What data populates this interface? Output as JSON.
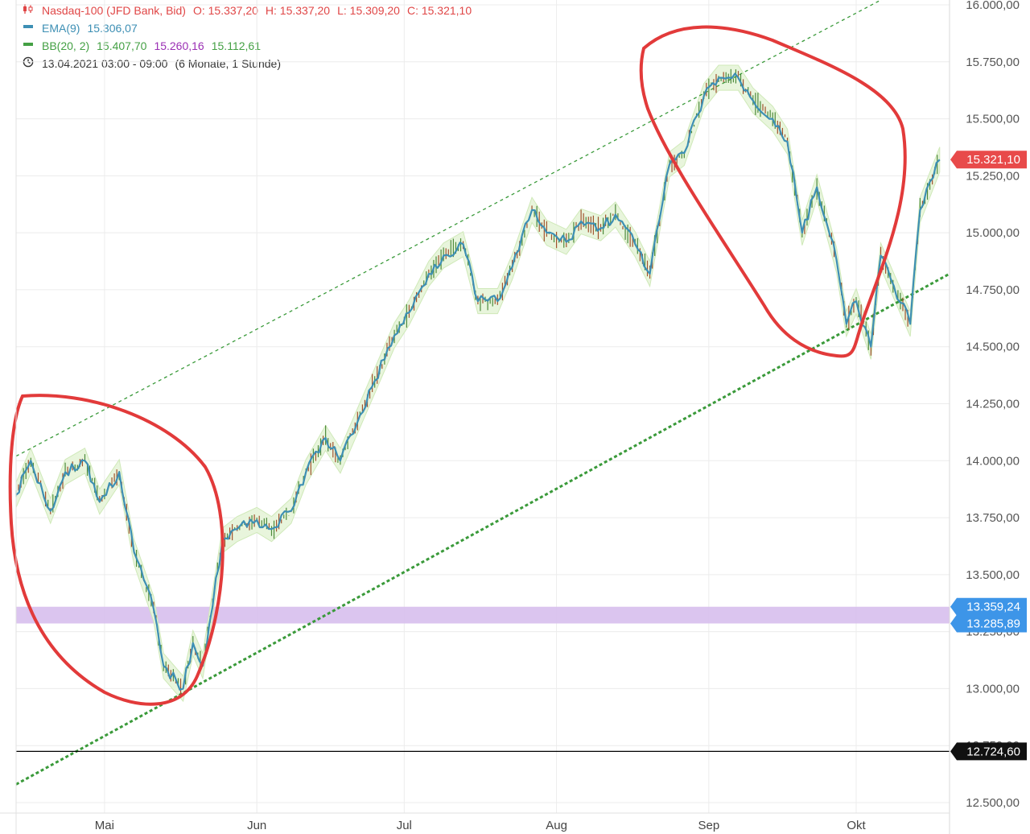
{
  "legend": {
    "instrument": "Nasdaq-100 (JFD Bank, Bid)",
    "open": "O: 15.337,20",
    "high": "H: 15.337,20",
    "low": "L: 15.309,20",
    "close": "C: 15.321,10",
    "ema_label": "EMA(9)",
    "ema_value": "15.306,07",
    "bb_label": "BB(20, 2)",
    "bb_upper": "15.407,70",
    "bb_middle": "15.260,16",
    "bb_lower": "15.112,61",
    "timestamp": "13.04.2021 03:00 - 09:00",
    "period": "(6 Monate, 1 Stunde)"
  },
  "icons": [
    "candlestick-icon",
    "ema-icon",
    "bollinger-icon",
    "clock-icon"
  ],
  "colors": {
    "title": "#e04646",
    "ema": "#3d8fb4",
    "bb": "#44a044",
    "bb_middle": "#9b2fb4",
    "annotation": "#e23a3a",
    "zone": "#d9c2ee",
    "last_price_tag": "#e84a4a",
    "zone_tag": "#3d95e8",
    "support_tag": "#111111"
  },
  "chart_data": {
    "type": "line",
    "x_ticks": [
      "Mai",
      "Jun",
      "Jul",
      "Aug",
      "Sep",
      "Okt"
    ],
    "y_ticks": [
      "12.500,00",
      "12.750,00",
      "13.000,00",
      "13.250,00",
      "13.500,00",
      "13.750,00",
      "14.000,00",
      "14.250,00",
      "14.500,00",
      "14.750,00",
      "15.000,00",
      "15.250,00",
      "15.500,00",
      "15.750,00",
      "16.000,00"
    ],
    "ylim": [
      12500,
      16000
    ],
    "xlim": [
      "2021-04-13",
      "2021-10-20"
    ],
    "grid": true,
    "series": [
      {
        "name": "EMA(9)",
        "x": [
          "2021-04-13",
          "2021-04-16",
          "2021-04-20",
          "2021-04-23",
          "2021-04-27",
          "2021-04-30",
          "2021-05-04",
          "2021-05-07",
          "2021-05-11",
          "2021-05-13",
          "2021-05-17",
          "2021-05-19",
          "2021-05-21",
          "2021-05-25",
          "2021-05-28",
          "2021-06-01",
          "2021-06-04",
          "2021-06-08",
          "2021-06-11",
          "2021-06-15",
          "2021-06-18",
          "2021-06-22",
          "2021-06-25",
          "2021-06-29",
          "2021-07-02",
          "2021-07-06",
          "2021-07-09",
          "2021-07-13",
          "2021-07-16",
          "2021-07-20",
          "2021-07-23",
          "2021-07-27",
          "2021-07-30",
          "2021-08-03",
          "2021-08-06",
          "2021-08-10",
          "2021-08-13",
          "2021-08-17",
          "2021-08-20",
          "2021-08-24",
          "2021-08-27",
          "2021-08-31",
          "2021-09-03",
          "2021-09-07",
          "2021-09-10",
          "2021-09-14",
          "2021-09-17",
          "2021-09-20",
          "2021-09-23",
          "2021-09-27",
          "2021-09-29",
          "2021-10-01",
          "2021-10-04",
          "2021-10-06",
          "2021-10-08",
          "2021-10-12",
          "2021-10-14",
          "2021-10-18"
        ],
        "values": [
          13850,
          14000,
          13780,
          13950,
          14000,
          13820,
          13950,
          13600,
          13350,
          13100,
          13000,
          13200,
          13100,
          13650,
          13700,
          13740,
          13700,
          13780,
          13950,
          14100,
          14000,
          14200,
          14350,
          14550,
          14650,
          14820,
          14900,
          14950,
          14700,
          14700,
          14850,
          15100,
          15000,
          14960,
          15050,
          15020,
          15080,
          14950,
          14820,
          15300,
          15350,
          15600,
          15680,
          15680,
          15580,
          15500,
          15400,
          15000,
          15200,
          14880,
          14600,
          14700,
          14500,
          14900,
          14800,
          14600,
          15100,
          15321
        ]
      }
    ],
    "lines": {
      "upper_channel": {
        "from": [
          "2021-04-13",
          14020
        ],
        "to": [
          "2021-10-20",
          16180
        ]
      },
      "lower_channel": {
        "from": [
          "2021-04-13",
          12580
        ],
        "to": [
          "2021-10-20",
          14820
        ]
      },
      "support": 12724.6
    },
    "zone": [
      13285.89,
      13359.24
    ],
    "price_tags": [
      "15.321,10",
      "13.359,24",
      "13.285,89",
      "12.724,60"
    ]
  }
}
